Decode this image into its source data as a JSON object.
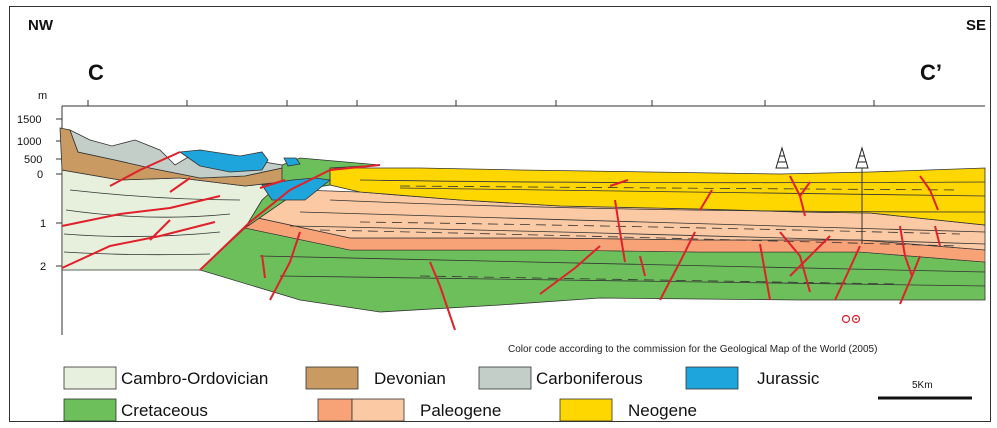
{
  "labels": {
    "nw": "NW",
    "se": "SE",
    "c_start": "C",
    "c_end": "C’",
    "unit": "m",
    "depth_ticks": [
      "1500",
      "1000",
      "500",
      "0",
      "1",
      "2"
    ],
    "note": "Color code according to the commission for the Geological Map of the World (2005)",
    "scale_bar": "5Km"
  },
  "legend": [
    {
      "label": "Cambro-Ordovician",
      "colors": [
        "#e7f0dc"
      ]
    },
    {
      "label": "Devonian",
      "colors": [
        "#c99a62"
      ]
    },
    {
      "label": "Carboniferous",
      "colors": [
        "#c2cec7"
      ]
    },
    {
      "label": "Jurassic",
      "colors": [
        "#1ea6dc"
      ]
    },
    {
      "label": "Cretaceous",
      "colors": [
        "#6cbf5a"
      ]
    },
    {
      "label": "Paleogene",
      "colors": [
        "#f7a277",
        "#fbc9a3"
      ]
    },
    {
      "label": "Neogene",
      "colors": [
        "#ffd700"
      ]
    }
  ],
  "colors": {
    "fault": "#e0202a",
    "outline": "#333333"
  }
}
